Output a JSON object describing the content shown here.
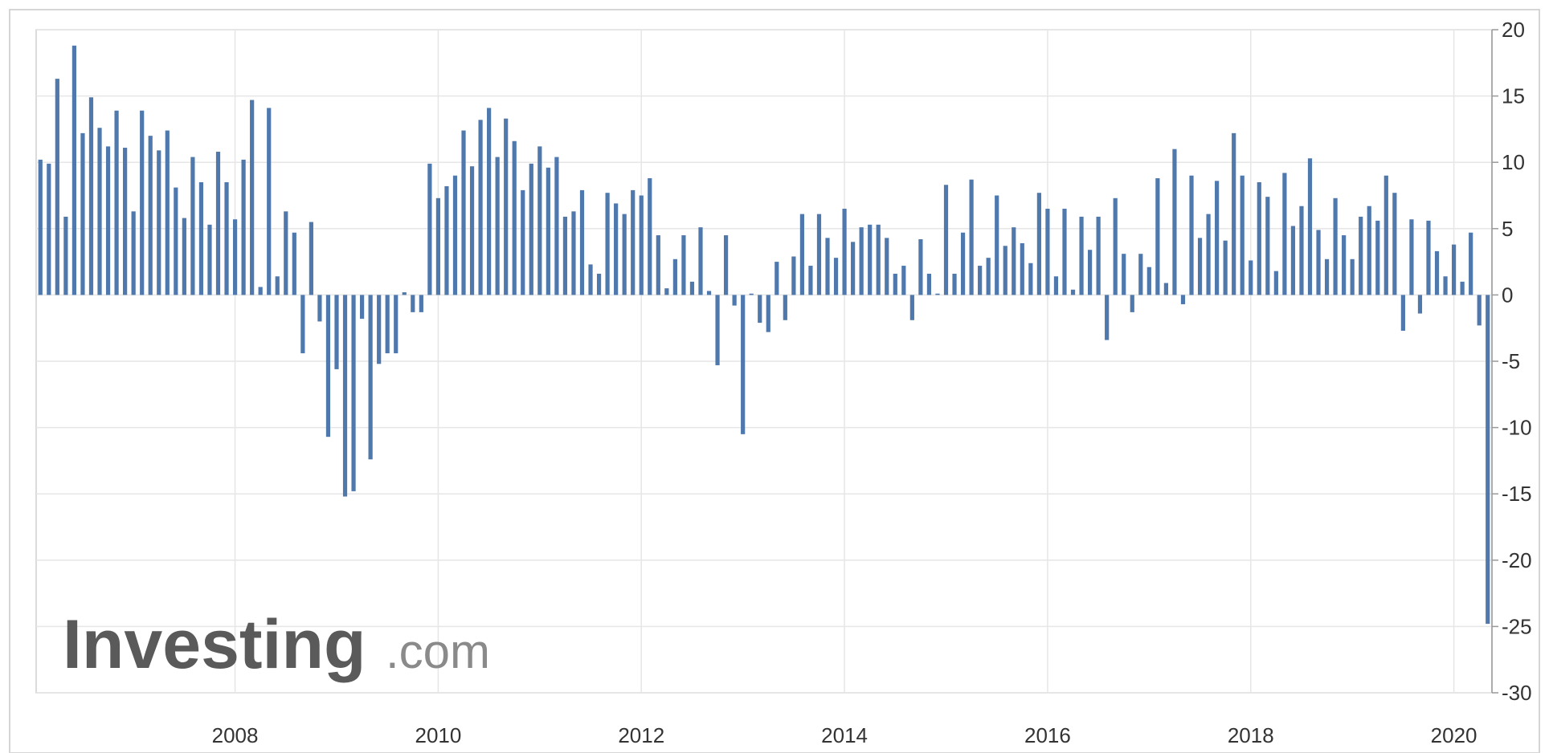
{
  "chart_data": {
    "type": "bar",
    "watermark": {
      "brand": "Investing",
      "suffix": ".com"
    },
    "categories": [
      null,
      null,
      null,
      null,
      null,
      null,
      null,
      null,
      null,
      null,
      null,
      null,
      null,
      null,
      null,
      null,
      null,
      null,
      null,
      null,
      null,
      null,
      null,
      "2008",
      null,
      null,
      null,
      null,
      null,
      null,
      null,
      null,
      null,
      null,
      null,
      null,
      null,
      null,
      null,
      null,
      null,
      null,
      null,
      null,
      null,
      null,
      null,
      "2010",
      null,
      null,
      null,
      null,
      null,
      null,
      null,
      null,
      null,
      null,
      null,
      null,
      null,
      null,
      null,
      null,
      null,
      null,
      null,
      null,
      null,
      null,
      null,
      "2012",
      null,
      null,
      null,
      null,
      null,
      null,
      null,
      null,
      null,
      null,
      null,
      null,
      null,
      null,
      null,
      null,
      null,
      null,
      null,
      null,
      null,
      null,
      null,
      "2014",
      null,
      null,
      null,
      null,
      null,
      null,
      null,
      null,
      null,
      null,
      null,
      null,
      null,
      null,
      null,
      null,
      null,
      null,
      null,
      null,
      null,
      null,
      null,
      "2016",
      null,
      null,
      null,
      null,
      null,
      null,
      null,
      null,
      null,
      null,
      null,
      null,
      null,
      null,
      null,
      null,
      null,
      null,
      null,
      null,
      null,
      null,
      null,
      "2018",
      null,
      null,
      null,
      null,
      null,
      null,
      null,
      null,
      null,
      null,
      null,
      null,
      null,
      null,
      null,
      null,
      null,
      null,
      null,
      null,
      null,
      null,
      null,
      "2020",
      null,
      null,
      null,
      null
    ],
    "values": [
      10.2,
      9.9,
      16.3,
      5.9,
      18.8,
      12.2,
      14.9,
      12.6,
      11.2,
      13.9,
      11.1,
      6.3,
      13.9,
      12.0,
      10.9,
      12.4,
      8.1,
      5.8,
      10.4,
      8.5,
      5.3,
      10.8,
      8.5,
      5.7,
      10.2,
      14.7,
      0.6,
      14.1,
      1.4,
      6.3,
      4.7,
      -4.4,
      5.5,
      -2.0,
      -10.7,
      -5.6,
      -15.2,
      -14.8,
      -1.8,
      -12.4,
      -5.2,
      -4.4,
      -4.4,
      0.2,
      -1.3,
      -1.3,
      9.9,
      7.3,
      8.2,
      9.0,
      12.4,
      9.7,
      13.2,
      14.1,
      10.4,
      13.3,
      11.6,
      7.9,
      9.9,
      11.2,
      9.6,
      10.4,
      5.9,
      6.3,
      7.9,
      2.3,
      1.6,
      7.7,
      6.9,
      6.1,
      7.9,
      7.5,
      8.8,
      4.5,
      0.5,
      2.7,
      4.5,
      1.0,
      5.1,
      0.3,
      -5.3,
      4.5,
      -0.8,
      -10.5,
      0.1,
      -2.1,
      -2.8,
      2.5,
      -1.9,
      2.9,
      6.1,
      2.2,
      6.1,
      4.3,
      2.8,
      6.5,
      4.0,
      5.1,
      5.3,
      5.3,
      4.3,
      1.6,
      2.2,
      -1.9,
      4.2,
      1.6,
      0.1,
      8.3,
      1.6,
      4.7,
      8.7,
      2.2,
      2.8,
      7.5,
      3.7,
      5.1,
      3.9,
      2.4,
      7.7,
      6.5,
      1.4,
      6.5,
      0.4,
      5.9,
      3.4,
      5.9,
      -3.4,
      7.3,
      3.1,
      -1.3,
      3.1,
      2.1,
      8.8,
      0.9,
      11.0,
      -0.7,
      9.0,
      4.3,
      6.1,
      8.6,
      4.1,
      12.2,
      9.0,
      2.6,
      8.5,
      7.4,
      1.8,
      9.2,
      5.2,
      6.7,
      10.3,
      4.9,
      2.7,
      7.3,
      4.5,
      2.7,
      5.9,
      6.7,
      5.6,
      9.0,
      7.7,
      -2.7,
      5.7,
      -1.4,
      5.6,
      3.3,
      1.4,
      3.8,
      1.0,
      4.7,
      -2.3,
      -24.8
    ],
    "color": "#4f78ad",
    "ylim": [
      -30,
      20
    ],
    "yticks": [
      20,
      15,
      10,
      5,
      0,
      -5,
      -10,
      -15,
      -20,
      -25,
      -30
    ],
    "grid": true
  }
}
